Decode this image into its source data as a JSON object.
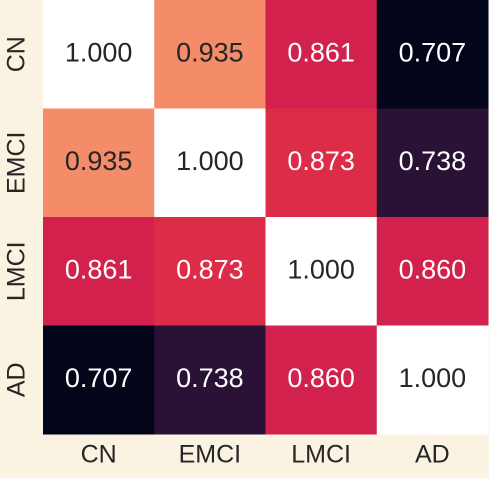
{
  "chart_data": {
    "type": "heatmap",
    "x_categories": [
      "CN",
      "EMCI",
      "LMCI",
      "AD"
    ],
    "y_categories": [
      "CN",
      "EMCI",
      "LMCI",
      "AD"
    ],
    "values": [
      [
        1.0,
        0.935,
        0.861,
        0.707
      ],
      [
        0.935,
        1.0,
        0.873,
        0.738
      ],
      [
        0.861,
        0.873,
        1.0,
        0.86
      ],
      [
        0.707,
        0.738,
        0.86,
        1.0
      ]
    ],
    "value_labels": [
      [
        "1.000",
        "0.935",
        "0.861",
        "0.707"
      ],
      [
        "0.935",
        "1.000",
        "0.873",
        "0.738"
      ],
      [
        "0.861",
        "0.873",
        "1.000",
        "0.860"
      ],
      [
        "0.707",
        "0.738",
        "0.860",
        "1.000"
      ]
    ]
  }
}
